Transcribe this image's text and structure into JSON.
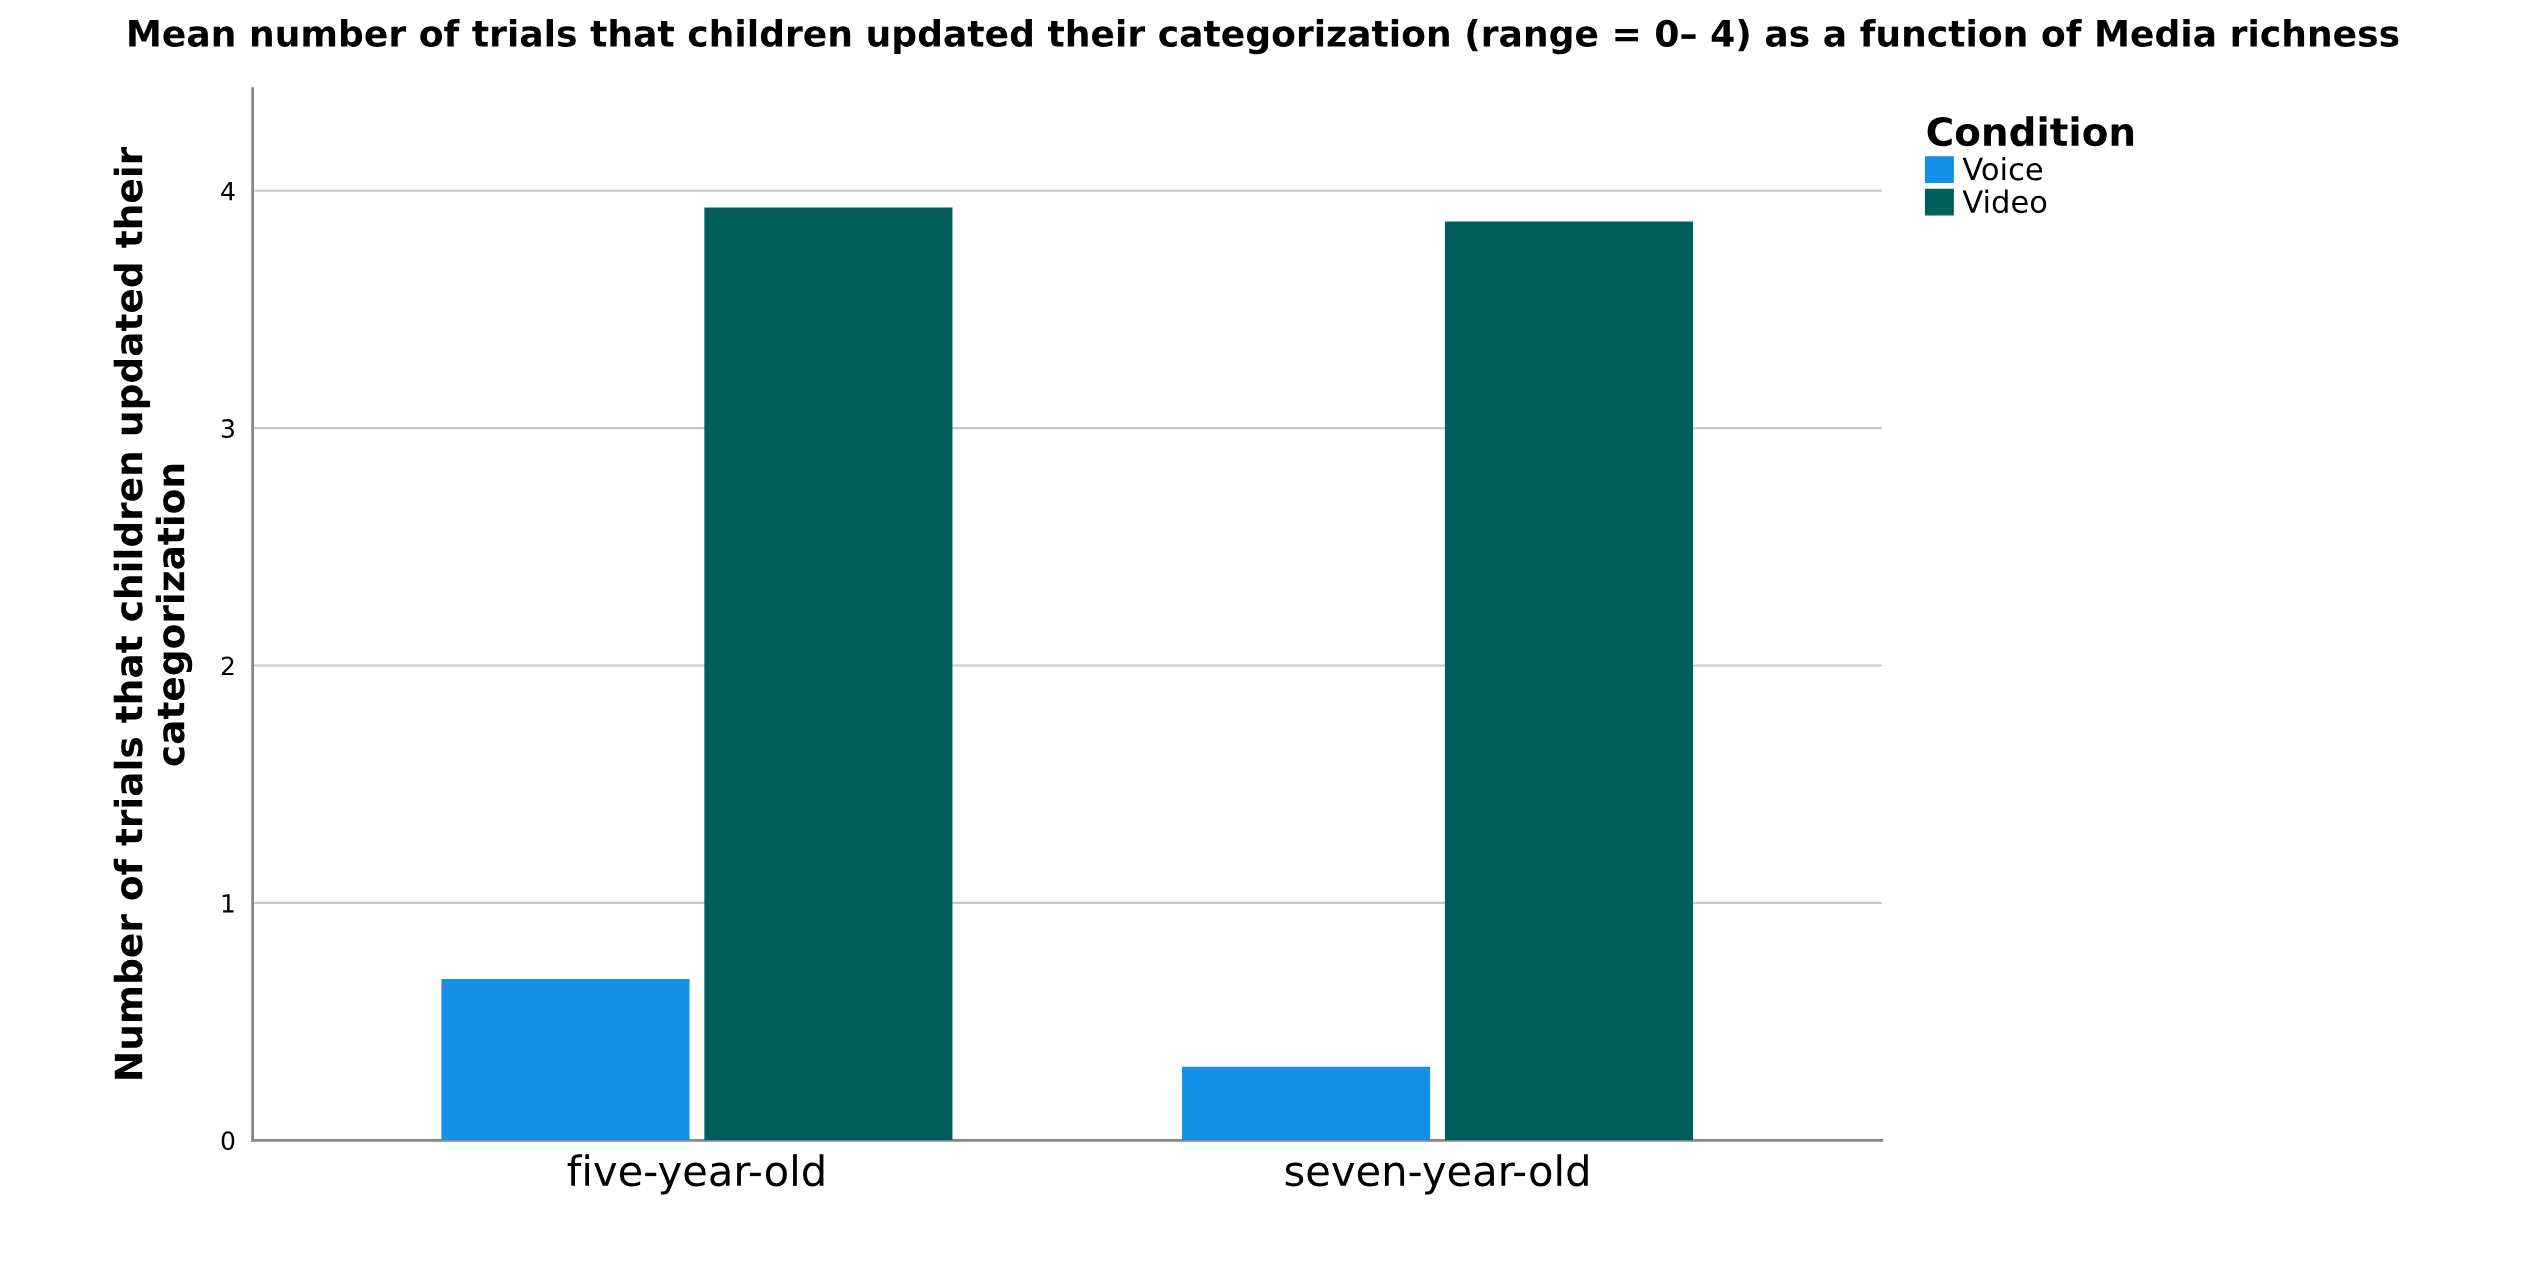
{
  "chart_data": {
    "type": "bar",
    "title": "Mean number of trials that children updated their categorization (range = 0– 4) as a function of Media richness",
    "ylabel": "Number of trials that children updated their categorization",
    "legend_title": "Condition",
    "categories": [
      "five-year-old",
      "seven-year-old"
    ],
    "series": [
      {
        "name": "Voice",
        "color": "#1490e6",
        "values": [
          0.68,
          0.31
        ]
      },
      {
        "name": "Video",
        "color": "#005e5b",
        "values": [
          3.93,
          3.87
        ]
      }
    ],
    "ylim": [
      0,
      4.43
    ],
    "yticks": [
      0,
      1,
      2,
      3,
      4
    ],
    "grid": "y",
    "legend": "top right"
  }
}
